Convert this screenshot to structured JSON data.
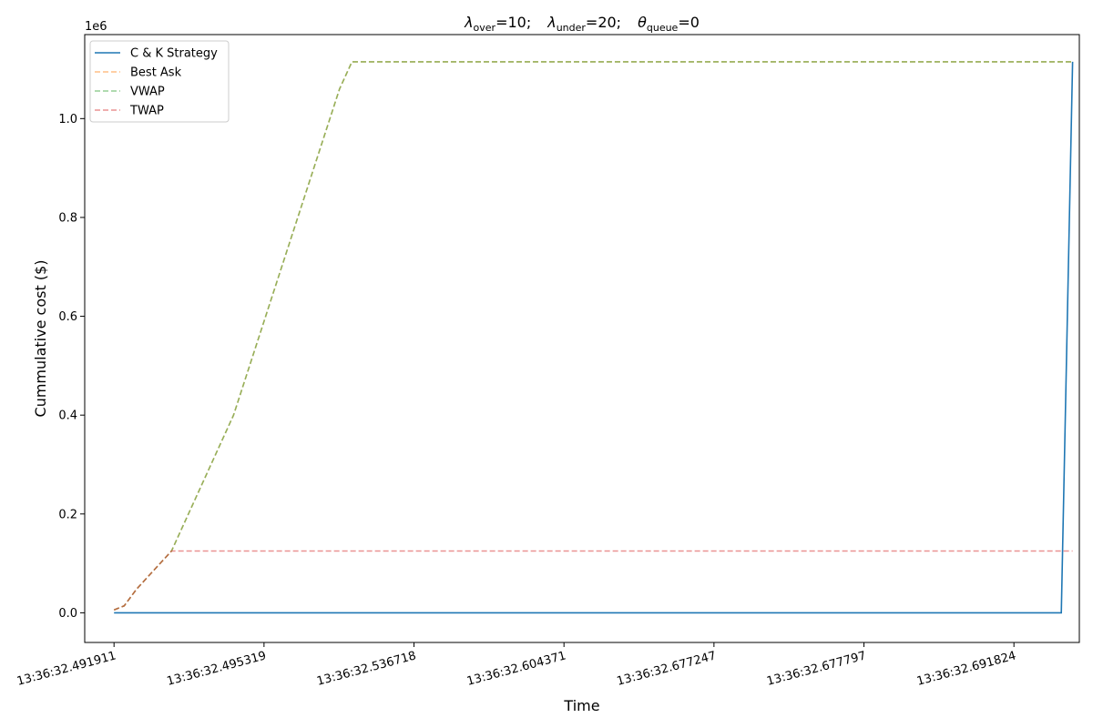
{
  "chart_data": {
    "type": "line",
    "title": {
      "lambda_symbol": "λ",
      "over_sub": "over",
      "over_val": "=10;",
      "under_sub": "under",
      "under_val": "=20;",
      "theta_symbol": "θ",
      "queue_sub": "queue",
      "queue_val": "=0"
    },
    "xlabel": "Time",
    "ylabel": "Cummulative cost ($)",
    "y_offset_label": "1e6",
    "y_scale_factor": 1000000,
    "ylim": [
      -60000,
      1170000
    ],
    "y_ticks": [
      0,
      200000,
      400000,
      600000,
      800000,
      1000000
    ],
    "y_tick_labels": [
      "0.0",
      "0.2",
      "0.4",
      "0.6",
      "0.8",
      "1.0"
    ],
    "x_type": "index",
    "xlim": [
      -2.6,
      85.6
    ],
    "x_ticks": [
      0,
      13.3,
      26.6,
      39.9,
      53.2,
      66.5,
      79.8
    ],
    "x_tick_labels": [
      "13:36:32.491911",
      "13:36:32.495319",
      "13:36:32.536718",
      "13:36:32.604371",
      "13:36:32.677247",
      "13:36:32.677797",
      "13:36:32.691824"
    ],
    "legend_position": "top-left",
    "grid": false,
    "series": [
      {
        "name": "C & K Strategy",
        "color": "#1f77b4",
        "dashed": false,
        "opacity": 1,
        "x": [
          0,
          84,
          85
        ],
        "y": [
          0,
          0,
          1115000
        ]
      },
      {
        "name": "Best Ask",
        "color": "#ff7f0e",
        "dashed": true,
        "opacity": 0.5,
        "x": [
          0,
          0.9,
          2,
          5.1,
          10.6,
          20,
          21.1,
          85
        ],
        "y": [
          6000,
          14000,
          48000,
          125000,
          400000,
          1060000,
          1115000,
          1115000
        ]
      },
      {
        "name": "VWAP",
        "color": "#2ca02c",
        "dashed": true,
        "opacity": 0.5,
        "x": [
          0,
          0.9,
          2,
          5.1,
          10.6,
          20,
          21.1,
          85
        ],
        "y": [
          6000,
          14000,
          48000,
          125000,
          400000,
          1060000,
          1115000,
          1115000
        ]
      },
      {
        "name": "TWAP",
        "color": "#d62728",
        "dashed": true,
        "opacity": 0.5,
        "x": [
          0,
          0.9,
          2,
          5.1,
          85
        ],
        "y": [
          6000,
          14000,
          48000,
          125000,
          125000
        ]
      }
    ]
  }
}
